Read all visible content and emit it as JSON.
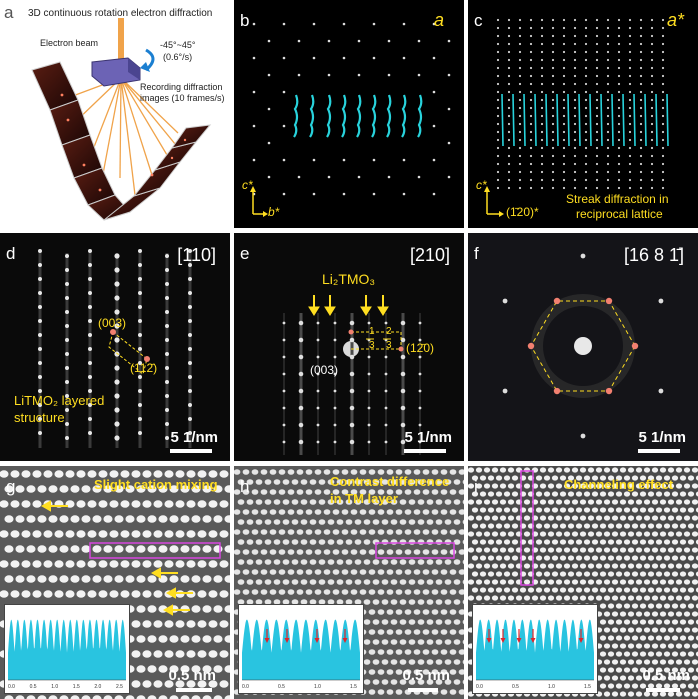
{
  "panels": {
    "a": {
      "label": "a",
      "title": "3D continuous rotation electron diffraction",
      "beam": "Electron beam",
      "angle": "-45°~45°",
      "rate": "(0.6°/s)",
      "recording_line1": "Recording diffraction",
      "recording_line2": "images (10 frames/s)"
    },
    "b": {
      "label": "b",
      "corner": "a",
      "axis_v": "c*",
      "axis_h": "b*"
    },
    "c": {
      "label": "c",
      "corner": "a*",
      "axis_v": "c*",
      "axis_h": "(1̄20)*",
      "note_line1": "Streak diffraction in",
      "note_line2": "reciprocal lattice"
    },
    "d": {
      "label": "d",
      "zone": "[110]",
      "spot1": "(003)",
      "spot2": "(112̄)",
      "struct_line1": "LiTMO₂ layered",
      "struct_line2": "structure",
      "scale": "5 1/nm"
    },
    "e": {
      "label": "e",
      "zone": "[210]",
      "phase": "Li₂TMO₃",
      "spot1": "(003)",
      "spot2": "(12̄0)",
      "frac1_num": "1",
      "frac1_den": "3",
      "frac2_num": "2",
      "frac2_den": "3",
      "scale": "5 1/nm"
    },
    "f": {
      "label": "f",
      "zone": "[16 8 1̄]",
      "scale": "5 1/nm"
    },
    "g": {
      "label": "g",
      "title": "Slight cation mixing",
      "scale": "0.5 nm",
      "inset_ticks": [
        "0.0",
        "0.5",
        "1.0",
        "1.5",
        "2.0",
        "2.5"
      ],
      "inset_axis": "nm"
    },
    "h": {
      "label": "h",
      "title_line1": "Contrast difference",
      "title_line2": "in TM layer",
      "scale": "0.5 nm",
      "inset_ticks": [
        "0.0",
        "0.5",
        "1.0",
        "1.5"
      ],
      "inset_axis": "nm"
    },
    "i": {
      "label": "i",
      "title": "Channeling effect",
      "scale": "0.5 nm",
      "inset_ticks": [
        "0.0",
        "0.5",
        "1.0",
        "1.5"
      ],
      "inset_axis": "nm"
    }
  },
  "colors": {
    "yellow": "#ffde21",
    "cyan": "#28d3dc",
    "magenta": "#d746e0",
    "orange": "#f2a03a",
    "red": "#e0262b"
  }
}
